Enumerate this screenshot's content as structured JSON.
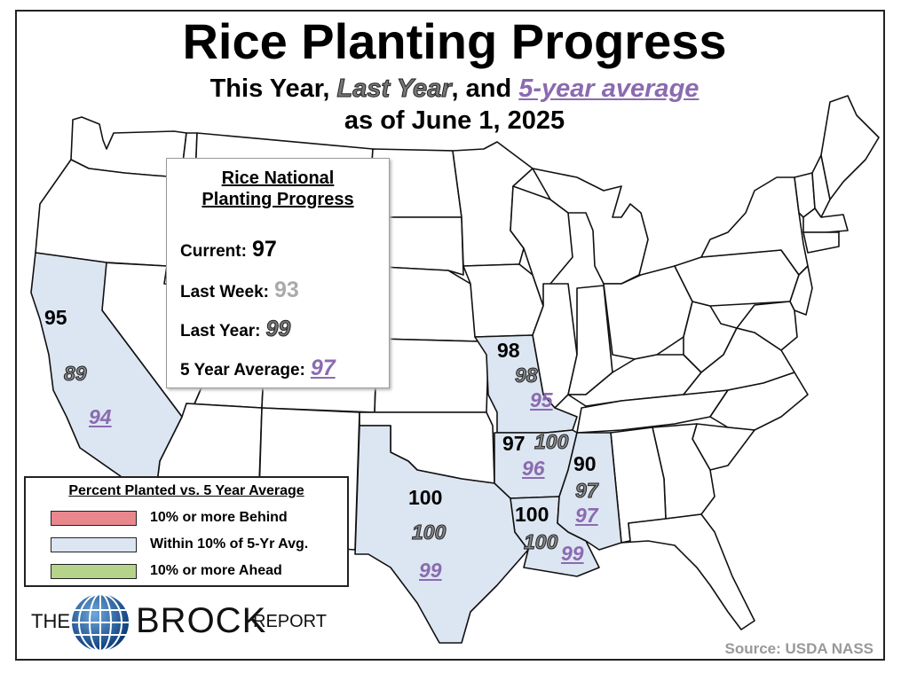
{
  "title": "Rice Planting Progress",
  "subtitle": {
    "this_year": "This Year,",
    "last_year": "Last Year",
    "and": ", and",
    "five_year": "5-year average"
  },
  "as_of": "as of June 1, 2025",
  "national": {
    "title_line1": "Rice National",
    "title_line2": "Planting Progress",
    "rows": [
      {
        "label": "Current:",
        "value": "97"
      },
      {
        "label": "Last Week:",
        "value": "93"
      },
      {
        "label": "Last Year:",
        "value": "99"
      },
      {
        "label": "5 Year Average:",
        "value": "97"
      }
    ]
  },
  "states": [
    {
      "name": "California",
      "current": "95",
      "last_year": "89",
      "avg": "94"
    },
    {
      "name": "Missouri",
      "current": "98",
      "last_year": "98",
      "avg": "95"
    },
    {
      "name": "Arkansas",
      "current": "97",
      "last_year": "100",
      "avg": "96"
    },
    {
      "name": "Mississippi",
      "current": "90",
      "last_year": "97",
      "avg": "97"
    },
    {
      "name": "Texas",
      "current": "100",
      "last_year": "100",
      "avg": "99"
    },
    {
      "name": "Louisiana",
      "current": "100",
      "last_year": "100",
      "avg": "99"
    }
  ],
  "legend": {
    "title": "Percent Planted vs. 5 Year Average",
    "items": [
      {
        "label": "10% or more Behind",
        "color": "#e8878c"
      },
      {
        "label": "Within 10% of 5-Yr Avg.",
        "color": "#dce6f2"
      },
      {
        "label": "10% or more Ahead",
        "color": "#b5d48a"
      }
    ]
  },
  "logo": {
    "the": "THE",
    "brock": "BROCK",
    "report": "REPORT"
  },
  "source": "Source: USDA NASS",
  "colors": {
    "within": "#dce6f2",
    "ly": "#888888",
    "avg": "#8a6bb0",
    "last_week": "#aaaaaa"
  }
}
